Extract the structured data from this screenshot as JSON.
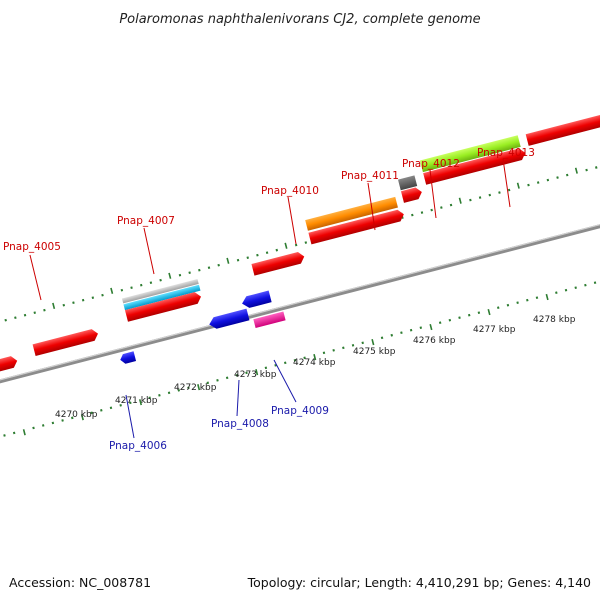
{
  "title": "Polaromonas naphthalenivorans CJ2, complete genome",
  "footer": {
    "accession": "Accession: NC_008781",
    "summary": "Topology: circular; Length: 4,410,291 bp; Genes: 4,140"
  },
  "colors": {
    "backbone": "#8c8c8c",
    "tick": "#2e7d32",
    "label_forward": "#cc0000",
    "label_reverse": "#1a1aaa"
  },
  "scale_labels": [
    "4270 kbp",
    "4271 kbp",
    "4272 kbp",
    "4273 kbp",
    "4274 kbp",
    "4275 kbp",
    "4276 kbp",
    "4277 kbp",
    "4278 kbp"
  ],
  "gene_labels": {
    "forward": [
      "Pnap_4005",
      "Pnap_4007",
      "Pnap_4010",
      "Pnap_4011",
      "Pnap_4012",
      "Pnap_4013"
    ],
    "reverse": [
      "Pnap_4006",
      "Pnap_4008",
      "Pnap_4009"
    ]
  },
  "feature_colors": [
    "red",
    "grey",
    "cyan",
    "orange",
    "dark-grey",
    "lime",
    "blue",
    "magenta"
  ]
}
